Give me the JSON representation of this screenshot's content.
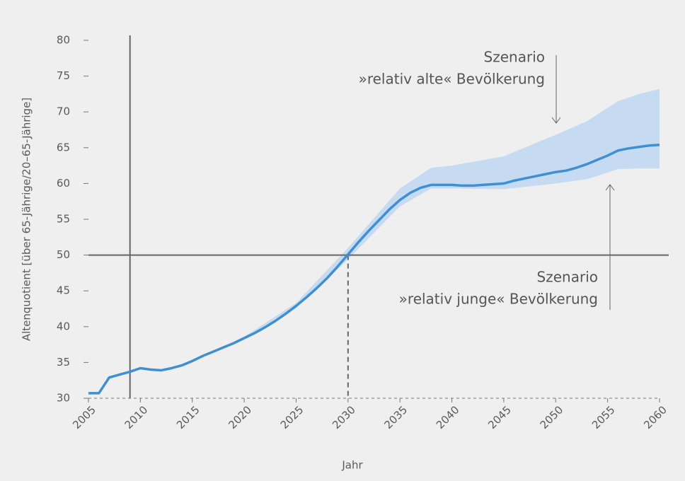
{
  "chart_data": {
    "type": "line",
    "xlabel": "Jahr",
    "ylabel": "Altenquotient [über 65-Jährige/20–65-Jährige]",
    "x": [
      2005,
      2006,
      2007,
      2008,
      2009,
      2010,
      2011,
      2012,
      2013,
      2014,
      2015,
      2016,
      2017,
      2018,
      2019,
      2020,
      2021,
      2022,
      2023,
      2024,
      2025,
      2026,
      2027,
      2028,
      2029,
      2030,
      2031,
      2032,
      2033,
      2034,
      2035,
      2036,
      2037,
      2038,
      2039,
      2040,
      2041,
      2042,
      2043,
      2044,
      2045,
      2046,
      2047,
      2048,
      2049,
      2050,
      2051,
      2052,
      2053,
      2054,
      2055,
      2056,
      2057,
      2058,
      2059,
      2060
    ],
    "series": [
      {
        "color": "#3f8fd2",
        "values": [
          30.7,
          30.7,
          32.9,
          33.3,
          33.7,
          34.2,
          34.0,
          33.9,
          34.2,
          34.6,
          35.2,
          35.9,
          36.5,
          37.1,
          37.7,
          38.4,
          39.1,
          39.9,
          40.8,
          41.8,
          42.9,
          44.1,
          45.4,
          46.8,
          48.4,
          50.1,
          51.8,
          53.4,
          54.9,
          56.4,
          57.7,
          58.7,
          59.4,
          59.8,
          59.8,
          59.8,
          59.7,
          59.7,
          59.8,
          59.9,
          60.0,
          60.4,
          60.7,
          61.0,
          61.3,
          61.6,
          61.8,
          62.2,
          62.7,
          63.3,
          63.9,
          64.6,
          64.9,
          65.1,
          65.3,
          65.4
        ]
      }
    ],
    "band": {
      "color": "#c6dbf1",
      "x": [
        2018,
        2020,
        2025,
        2030,
        2035,
        2038,
        2040,
        2045,
        2050,
        2053,
        2056,
        2058,
        2060
      ],
      "upper": [
        37.2,
        38.6,
        43.3,
        51.0,
        59.3,
        62.2,
        62.5,
        63.8,
        66.8,
        68.7,
        71.5,
        72.5,
        73.2
      ],
      "lower": [
        37.0,
        38.3,
        42.6,
        49.4,
        56.8,
        59.3,
        59.3,
        59.2,
        60.0,
        60.6,
        62.0,
        62.1,
        62.1
      ]
    },
    "xlim": [
      2005,
      2060
    ],
    "ylim": [
      30,
      80
    ],
    "xticks": [
      2005,
      2010,
      2015,
      2020,
      2025,
      2030,
      2035,
      2040,
      2045,
      2050,
      2055,
      2060
    ],
    "yticks": [
      30,
      35,
      40,
      45,
      50,
      55,
      60,
      65,
      70,
      75,
      80
    ],
    "reference_lines": [
      {
        "x": 2009
      },
      {
        "y": 50
      },
      {
        "x": 2030,
        "dashed": true
      }
    ],
    "annotations": [
      {
        "lines": [
          "Szenario",
          "»relativ alte« Bevölkerung"
        ]
      },
      {
        "lines": [
          "Szenario",
          "»relativ junge« Bevölkerung"
        ]
      }
    ]
  }
}
